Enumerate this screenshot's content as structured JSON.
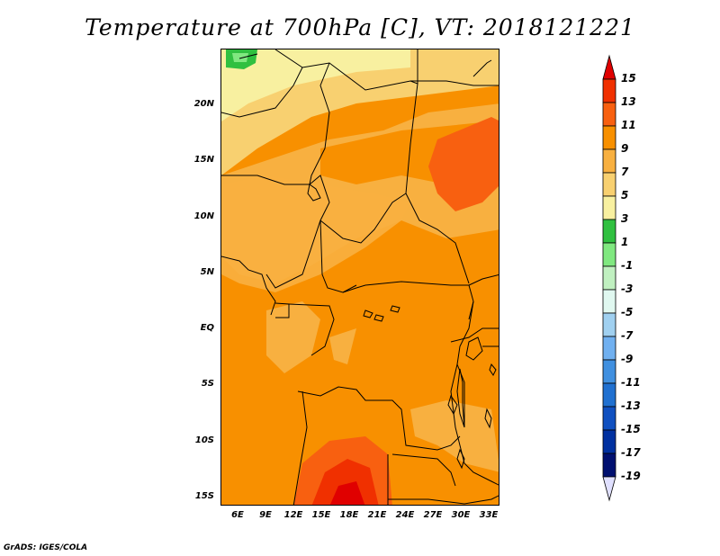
{
  "title": "Temperature at 700hPa [C], VT: 2018121221",
  "credit": "GrADS: IGES/COLA",
  "map": {
    "lat_labels": [
      "20N",
      "15N",
      "10N",
      "5N",
      "EQ",
      "5S",
      "10S",
      "15S"
    ],
    "lon_labels": [
      "6E",
      "9E",
      "12E",
      "15E",
      "18E",
      "21E",
      "24E",
      "27E",
      "30E",
      "33E"
    ]
  },
  "colorbar": {
    "labels": [
      "15",
      "13",
      "11",
      "9",
      "7",
      "5",
      "3",
      "1",
      "-1",
      "-3",
      "-5",
      "-7",
      "-9",
      "-11",
      "-13",
      "-15",
      "-17",
      "-19"
    ],
    "colors": [
      "#e00000",
      "#f03000",
      "#f86010",
      "#f89000",
      "#f8b040",
      "#f8d070",
      "#f8f0a0",
      "#30c040",
      "#80e880",
      "#c0f0c0",
      "#e0f8f0",
      "#a0d0f0",
      "#70b0f0",
      "#4090e0",
      "#2070d0",
      "#1050c0",
      "#0030a0",
      "#001070",
      "#e0e0ff"
    ],
    "top_arrow_color": "#e00000",
    "bottom_arrow_color": "#e0e0ff"
  }
}
